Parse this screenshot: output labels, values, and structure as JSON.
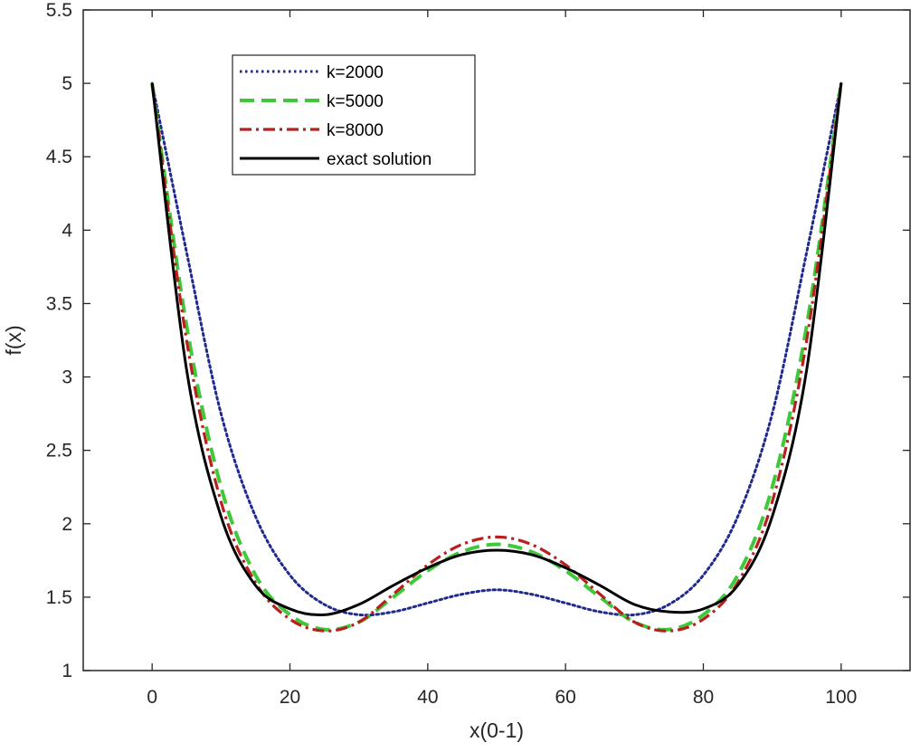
{
  "chart_data": {
    "type": "line",
    "xlabel": "x(0-1)",
    "ylabel": "f(x)",
    "xlim": [
      -10,
      110
    ],
    "ylim": [
      1,
      5.5
    ],
    "xticks": [
      0,
      20,
      40,
      60,
      80,
      100
    ],
    "yticks": [
      1,
      1.5,
      2,
      2.5,
      3,
      3.5,
      4,
      4.5,
      5,
      5.5
    ],
    "ytick_labels": [
      "1",
      "1.5",
      "2",
      "2.5",
      "3",
      "3.5",
      "4",
      "4.5",
      "5",
      "5.5"
    ],
    "xtick_labels": [
      "0",
      "20",
      "40",
      "60",
      "80",
      "100"
    ],
    "grid": false,
    "legend_position": "top-left",
    "x": [
      0,
      5,
      10,
      15,
      20,
      25,
      30,
      35,
      40,
      45,
      50,
      55,
      60,
      65,
      70,
      75,
      80,
      85,
      90,
      95,
      100
    ],
    "series": [
      {
        "name": "k=2000",
        "color": "#1f2a8c",
        "style": "dotted",
        "values": [
          5.0,
          3.85,
          2.75,
          2.05,
          1.65,
          1.45,
          1.38,
          1.4,
          1.46,
          1.52,
          1.55,
          1.52,
          1.46,
          1.4,
          1.38,
          1.45,
          1.65,
          2.05,
          2.75,
          3.85,
          5.0
        ]
      },
      {
        "name": "k=5000",
        "color": "#3ec83a",
        "style": "dashed",
        "values": [
          5.0,
          3.35,
          2.25,
          1.65,
          1.38,
          1.28,
          1.33,
          1.5,
          1.68,
          1.81,
          1.86,
          1.81,
          1.68,
          1.5,
          1.33,
          1.28,
          1.38,
          1.65,
          2.25,
          3.35,
          5.0
        ]
      },
      {
        "name": "k=8000",
        "color": "#b8201e",
        "style": "dashdot",
        "values": [
          5.0,
          3.25,
          2.15,
          1.6,
          1.35,
          1.27,
          1.33,
          1.52,
          1.72,
          1.86,
          1.91,
          1.86,
          1.72,
          1.52,
          1.33,
          1.27,
          1.35,
          1.6,
          2.15,
          3.25,
          5.0
        ]
      },
      {
        "name": "exact solution",
        "color": "#000000",
        "style": "solid",
        "values": [
          5.0,
          3.05,
          2.05,
          1.58,
          1.42,
          1.38,
          1.45,
          1.58,
          1.7,
          1.79,
          1.82,
          1.79,
          1.7,
          1.58,
          1.45,
          1.4,
          1.42,
          1.58,
          2.05,
          3.05,
          5.0
        ]
      }
    ]
  }
}
